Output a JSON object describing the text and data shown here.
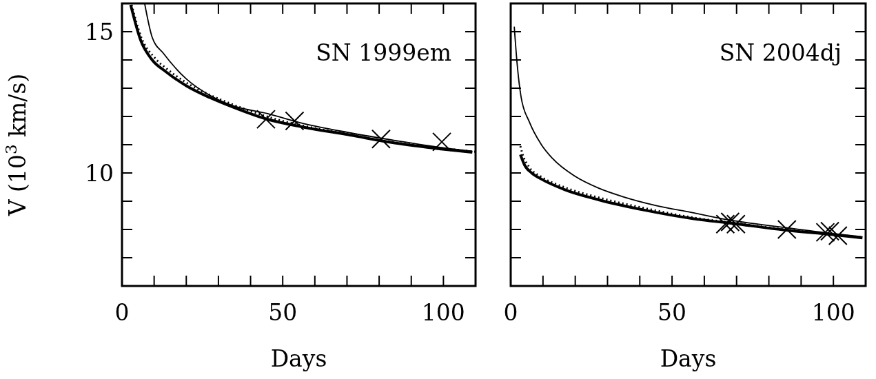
{
  "chart_data": [
    {
      "type": "line",
      "xlabel": "Days",
      "ylabel": "V (10$^{3}$ km/s)",
      "annotations": [
        "SN 1999em"
      ],
      "xlim": [
        0,
        110
      ],
      "ylim": [
        6,
        16
      ],
      "xticks": [
        {
          "value": 0,
          "label": "0"
        },
        {
          "value": 10,
          "label": null
        },
        {
          "value": 20,
          "label": null
        },
        {
          "value": 30,
          "label": null
        },
        {
          "value": 40,
          "label": null
        },
        {
          "value": 50,
          "label": "50"
        },
        {
          "value": 60,
          "label": null
        },
        {
          "value": 70,
          "label": null
        },
        {
          "value": 80,
          "label": null
        },
        {
          "value": 90,
          "label": null
        },
        {
          "value": 100,
          "label": "100"
        },
        {
          "value": 110,
          "label": null
        }
      ],
      "yticks": [
        {
          "value": 6,
          "label": null
        },
        {
          "value": 7,
          "label": null
        },
        {
          "value": 8,
          "label": null
        },
        {
          "value": 9,
          "label": null
        },
        {
          "value": 10,
          "label": "10"
        },
        {
          "value": 11,
          "label": null
        },
        {
          "value": 12,
          "label": null
        },
        {
          "value": 13,
          "label": null
        },
        {
          "value": 14,
          "label": null
        },
        {
          "value": 15,
          "label": "15"
        },
        {
          "value": 16,
          "label": null
        }
      ],
      "series": [
        {
          "color": "#000000",
          "x": [
            2.7,
            5.8,
            9.4,
            13.7,
            20.1,
            27.3,
            34.5,
            44.6,
            56.1,
            70.5,
            84.9,
            99.3,
            109
          ],
          "values": [
            15.95,
            14.7,
            14.0,
            13.58,
            13.08,
            12.67,
            12.33,
            11.92,
            11.63,
            11.35,
            11.06,
            10.85,
            10.73
          ]
        },
        {
          "color": "#000000",
          "line_style": "dotted",
          "x": [
            3,
            6,
            10,
            14,
            20,
            27,
            35,
            45,
            56,
            70,
            85,
            100,
            110
          ],
          "values": [
            15.95,
            14.8,
            14.1,
            13.68,
            13.2,
            12.78,
            12.4,
            12.0,
            11.68,
            11.38,
            11.08,
            10.87,
            10.75
          ]
        },
        {
          "color": "#000000",
          "x": [
            7.05,
            9.4,
            12.9,
            20.1,
            27.3,
            34.5,
            45.3,
            56.1,
            70.5,
            84.9,
            99.3,
            109
          ],
          "values": [
            16,
            14.8,
            14.23,
            13.32,
            12.75,
            12.38,
            12.1,
            11.76,
            11.43,
            11.15,
            10.9,
            10.77
          ]
        },
        {
          "type": "scatter",
          "marker": "cross",
          "color": "#000000",
          "x": [
            44.8,
            53.7,
            80.6,
            99.5
          ],
          "values": [
            11.9,
            11.84,
            11.2,
            11.1
          ]
        }
      ]
    },
    {
      "type": "line",
      "xlabel": "Days",
      "annotations": [
        "SN 2004dj"
      ],
      "tick_labels": "x",
      "xlim": [
        0,
        110
      ],
      "ylim": [
        6,
        16
      ],
      "xticks": [
        0,
        {
          "value": 10,
          "label": null
        },
        {
          "value": 20,
          "label": null
        },
        {
          "value": 30,
          "label": null
        },
        {
          "value": 40,
          "label": null
        },
        50,
        {
          "value": 60,
          "label": null
        },
        {
          "value": 70,
          "label": null
        },
        {
          "value": 80,
          "label": null
        },
        {
          "value": 90,
          "label": null
        },
        100,
        {
          "value": 110,
          "label": null
        }
      ],
      "yticks": [
        {
          "value": 6,
          "label": null
        },
        {
          "value": 7,
          "label": null
        },
        {
          "value": 8,
          "label": null
        },
        {
          "value": 9,
          "label": null
        },
        10,
        {
          "value": 11,
          "label": null
        },
        {
          "value": 12,
          "label": null
        },
        {
          "value": 13,
          "label": null
        },
        {
          "value": 14,
          "label": null
        },
        15,
        {
          "value": 16,
          "label": null
        }
      ],
      "series": [
        {
          "color": "#000000",
          "x": [
            3,
            4.3,
            6.5,
            9.4,
            16.5,
            27.3,
            41.7,
            56.1,
            70.5,
            84.9,
            99.3,
            109
          ],
          "values": [
            10.65,
            10.28,
            10.0,
            9.79,
            9.42,
            9.05,
            8.68,
            8.39,
            8.19,
            7.98,
            7.82,
            7.7
          ]
        },
        {
          "color": "#000000",
          "line_style": "dotted",
          "x": [
            3,
            3.6,
            5.8,
            9.4,
            16.5,
            27.3,
            41.7,
            56.1,
            70.5,
            84.9,
            99.3,
            109
          ],
          "values": [
            10.95,
            10.69,
            10.2,
            9.87,
            9.5,
            9.13,
            8.75,
            8.43,
            8.21,
            8.0,
            7.84,
            7.72
          ]
        },
        {
          "color": "#000000",
          "x": [
            1.1,
            2,
            3.2,
            5.8,
            9.4,
            12.9,
            20.1,
            27.3,
            34.5,
            45.3,
            56.1,
            66.9,
            84.9,
            99.3,
            109
          ],
          "values": [
            15.18,
            13.85,
            12.7,
            11.8,
            11.02,
            10.52,
            9.87,
            9.46,
            9.17,
            8.84,
            8.6,
            8.35,
            8.07,
            7.86,
            7.74
          ]
        },
        {
          "type": "scatter",
          "marker": "cross",
          "color": "#000000",
          "x": [
            66.5,
            68,
            69.8,
            85.6,
            97.5,
            98.9,
            101.4
          ],
          "values": [
            8.19,
            8.27,
            8.19,
            8.0,
            7.9,
            7.94,
            7.78
          ]
        }
      ]
    }
  ]
}
